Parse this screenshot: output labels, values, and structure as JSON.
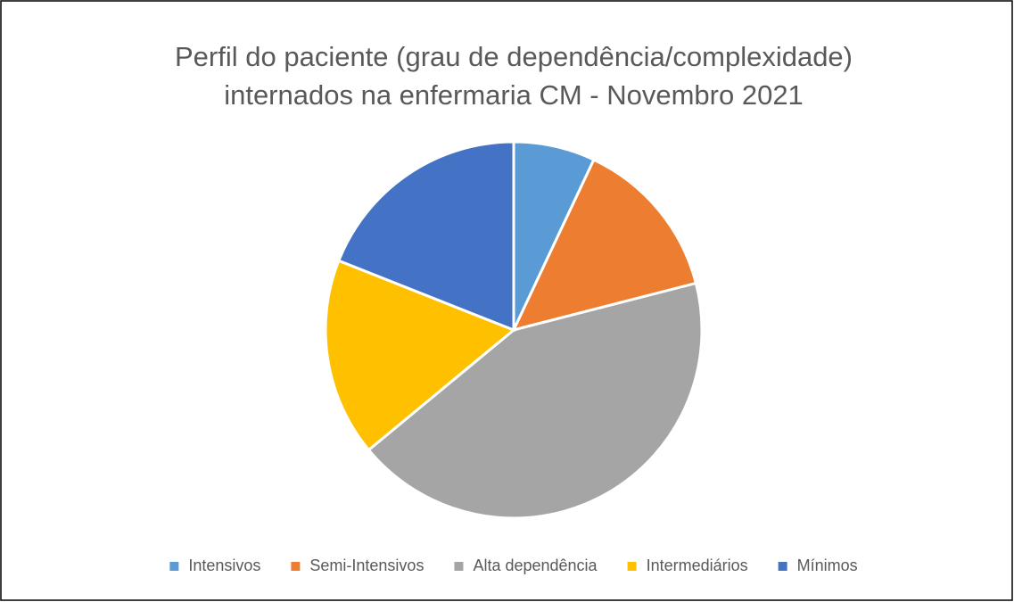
{
  "chart_data": {
    "type": "pie",
    "title": [
      "Perfil do paciente (grau de dependência/complexidade)",
      "internados na enfermaria CM - Novembro 2021"
    ],
    "categories": [
      "Intensivos",
      "Semi-Intensivos",
      "Alta dependência",
      "Intermediários",
      "Mínimos"
    ],
    "values": [
      7,
      14,
      43,
      17,
      19
    ],
    "colors": [
      "#5b9bd5",
      "#ed7d31",
      "#a5a5a5",
      "#ffc000",
      "#4472c4"
    ],
    "legend": "bottom"
  }
}
